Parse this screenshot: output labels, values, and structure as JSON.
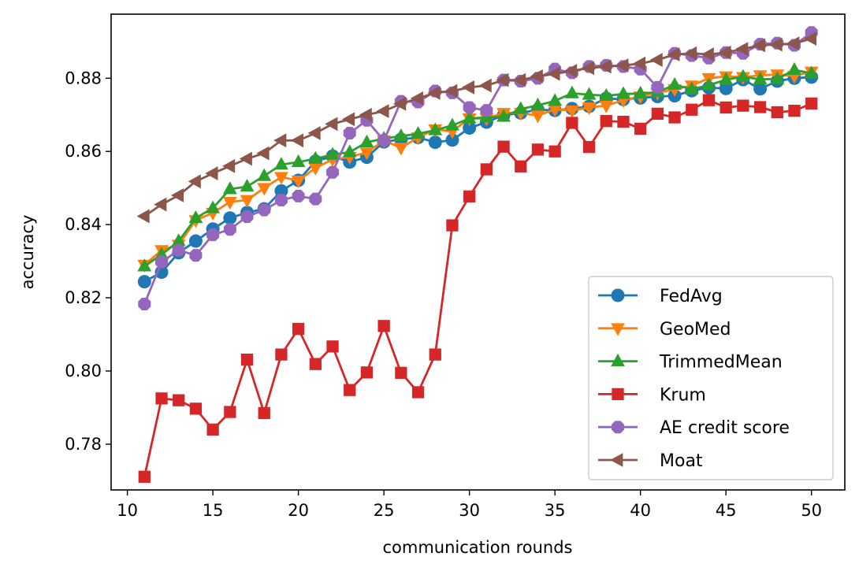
{
  "chart_data": {
    "type": "line",
    "title": "",
    "xlabel": "communication rounds",
    "ylabel": "accuracy",
    "xlim": [
      9.05,
      51.95
    ],
    "ylim": [
      0.7675,
      0.8975
    ],
    "x_ticks": [
      10,
      15,
      20,
      25,
      30,
      35,
      40,
      45,
      50
    ],
    "x_tick_labels": [
      "10",
      "15",
      "20",
      "25",
      "30",
      "35",
      "40",
      "45",
      "50"
    ],
    "y_ticks": [
      0.78,
      0.8,
      0.82,
      0.84,
      0.86,
      0.88
    ],
    "y_tick_labels": [
      "0.78",
      "0.80",
      "0.82",
      "0.84",
      "0.86",
      "0.88"
    ],
    "grid": false,
    "legend_position": "lower-right",
    "x": [
      11,
      12,
      13,
      14,
      15,
      16,
      17,
      18,
      19,
      20,
      21,
      22,
      23,
      24,
      25,
      26,
      27,
      28,
      29,
      30,
      31,
      32,
      33,
      34,
      35,
      36,
      37,
      38,
      39,
      40,
      41,
      42,
      43,
      44,
      45,
      46,
      47,
      48,
      49,
      50
    ],
    "series": [
      {
        "name": "FedAvg",
        "color": "#1f77b4",
        "marker": "circle",
        "values": [
          0.8244,
          0.827,
          0.8323,
          0.8355,
          0.8388,
          0.8418,
          0.8433,
          0.8443,
          0.8492,
          0.8521,
          0.8573,
          0.8587,
          0.8571,
          0.8584,
          0.8626,
          0.8633,
          0.8638,
          0.8625,
          0.8631,
          0.8664,
          0.868,
          0.8699,
          0.8705,
          0.8714,
          0.8712,
          0.8717,
          0.8723,
          0.8745,
          0.8742,
          0.8746,
          0.875,
          0.8752,
          0.8766,
          0.8774,
          0.8772,
          0.8796,
          0.8771,
          0.8792,
          0.88,
          0.8803
        ]
      },
      {
        "name": "GeoMed",
        "color": "#ff7f0e",
        "marker": "triangle-down",
        "values": [
          0.829,
          0.833,
          0.8345,
          0.8412,
          0.8432,
          0.8462,
          0.8467,
          0.85,
          0.853,
          0.852,
          0.8555,
          0.8578,
          0.8585,
          0.8597,
          0.863,
          0.861,
          0.8638,
          0.866,
          0.8655,
          0.869,
          0.869,
          0.8705,
          0.8705,
          0.8698,
          0.8715,
          0.8712,
          0.872,
          0.8725,
          0.874,
          0.875,
          0.876,
          0.877,
          0.878,
          0.88,
          0.8805,
          0.8803,
          0.8808,
          0.881,
          0.8806,
          0.8818
        ]
      },
      {
        "name": "TrimmedMean",
        "color": "#2ca02c",
        "marker": "triangle-up",
        "values": [
          0.8286,
          0.8318,
          0.8355,
          0.8418,
          0.8445,
          0.8497,
          0.8504,
          0.8533,
          0.8564,
          0.8571,
          0.858,
          0.8591,
          0.8598,
          0.8625,
          0.8635,
          0.8642,
          0.8648,
          0.8658,
          0.8671,
          0.869,
          0.8693,
          0.8695,
          0.8716,
          0.8726,
          0.8738,
          0.8759,
          0.8755,
          0.8752,
          0.8757,
          0.8758,
          0.8762,
          0.8782,
          0.877,
          0.8781,
          0.8796,
          0.8804,
          0.8797,
          0.8798,
          0.8823,
          0.8813
        ]
      },
      {
        "name": "Krum",
        "color": "#d62728",
        "marker": "square",
        "values": [
          0.7711,
          0.7925,
          0.792,
          0.7897,
          0.784,
          0.7888,
          0.8031,
          0.7885,
          0.8045,
          0.8115,
          0.8019,
          0.8067,
          0.7948,
          0.7996,
          0.8123,
          0.7995,
          0.7942,
          0.8045,
          0.8398,
          0.8477,
          0.8551,
          0.8613,
          0.8559,
          0.8605,
          0.86,
          0.8678,
          0.8612,
          0.8683,
          0.8681,
          0.8662,
          0.8703,
          0.8693,
          0.8714,
          0.874,
          0.872,
          0.8725,
          0.8721,
          0.8707,
          0.8711,
          0.8731
        ]
      },
      {
        "name": "AE credit score",
        "color": "#9467bd",
        "marker": "octagon",
        "values": [
          0.8183,
          0.8298,
          0.833,
          0.8316,
          0.8372,
          0.8387,
          0.8422,
          0.844,
          0.8467,
          0.8478,
          0.847,
          0.8543,
          0.865,
          0.8685,
          0.863,
          0.8737,
          0.8735,
          0.8765,
          0.876,
          0.872,
          0.8712,
          0.8795,
          0.8792,
          0.88,
          0.8825,
          0.8815,
          0.8832,
          0.8835,
          0.8832,
          0.8825,
          0.8775,
          0.8868,
          0.8862,
          0.8855,
          0.887,
          0.8868,
          0.8893,
          0.8896,
          0.889,
          0.8925
        ]
      },
      {
        "name": "Moat",
        "color": "#8c564b",
        "marker": "triangle-left",
        "values": [
          0.8423,
          0.8455,
          0.848,
          0.8518,
          0.854,
          0.856,
          0.858,
          0.8595,
          0.863,
          0.863,
          0.865,
          0.8675,
          0.8688,
          0.87,
          0.871,
          0.873,
          0.8745,
          0.876,
          0.8765,
          0.8775,
          0.878,
          0.8795,
          0.8795,
          0.8805,
          0.8812,
          0.882,
          0.8828,
          0.8832,
          0.8835,
          0.884,
          0.885,
          0.8865,
          0.8868,
          0.8865,
          0.887,
          0.888,
          0.889,
          0.8892,
          0.8895,
          0.8908
        ]
      }
    ]
  }
}
